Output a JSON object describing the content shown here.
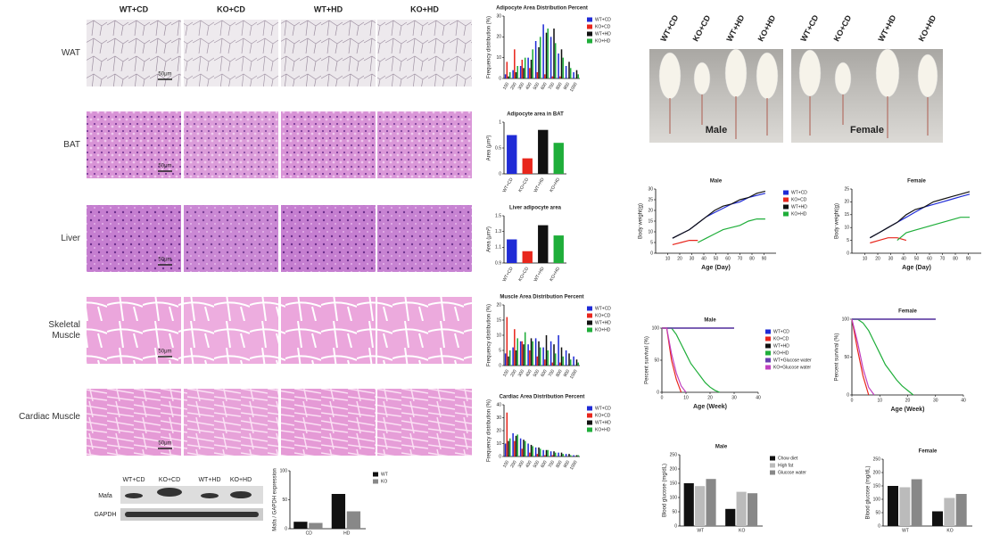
{
  "histology": {
    "columns": [
      "WT+CD",
      "KO+CD",
      "WT+HD",
      "KO+HD"
    ],
    "rows": [
      "WAT",
      "BAT",
      "Liver",
      "Skeletal Muscle",
      "Cardiac Muscle"
    ],
    "scale_bar": "50μm"
  },
  "western_blot": {
    "lanes": [
      "WT+CD",
      "KO+CD",
      "WT+HD",
      "KO+HD"
    ],
    "proteins": [
      "Mafa",
      "GAPDH"
    ]
  },
  "photo": {
    "labels": [
      "WT+CD",
      "KO+CD",
      "WT+HD",
      "KO+HD",
      "WT+CD",
      "KO+CD",
      "WT+HD",
      "KO+HD"
    ],
    "panels": [
      "Male",
      "Female"
    ]
  },
  "charts": [
    {
      "type": "bar",
      "title": "Adipocyte Area Distribution Percent",
      "y_label": "Frequency distribution (%)",
      "categories": [
        "100",
        "200",
        "300",
        "400",
        "500",
        "600",
        "700",
        "800",
        "900",
        "1000"
      ],
      "label_rotation": 60,
      "legend": "right",
      "ylim": [
        0,
        30
      ],
      "yticks": [
        0,
        10,
        20,
        30
      ],
      "series": [
        {
          "name": "WT+CD",
          "color": "#1f2bd6",
          "values": [
            2,
            4,
            6,
            10,
            18,
            26,
            20,
            12,
            6,
            3
          ]
        },
        {
          "name": "KO+CD",
          "color": "#e8261c",
          "values": [
            8,
            14,
            9,
            5,
            3,
            2,
            1,
            1,
            0,
            0
          ]
        },
        {
          "name": "WT+HD",
          "color": "#111111",
          "values": [
            1,
            3,
            5,
            9,
            15,
            22,
            24,
            14,
            8,
            4
          ]
        },
        {
          "name": "KO+HD",
          "color": "#1fae3a",
          "values": [
            3,
            6,
            10,
            14,
            20,
            24,
            17,
            10,
            5,
            2
          ]
        }
      ]
    },
    {
      "type": "bar",
      "title": "Adipocyte area in BAT",
      "y_label": "Area (μm²)",
      "categories": [
        "WT+CD",
        "KO+CD",
        "WT+HD",
        "KO+HD"
      ],
      "label_rotation": 60,
      "ylim": [
        0,
        1
      ],
      "yticks": [
        0,
        0.5,
        1
      ],
      "values": [
        0.75,
        0.3,
        0.85,
        0.6
      ],
      "colors": [
        "#1f2bd6",
        "#e8261c",
        "#111111",
        "#1fae3a"
      ]
    },
    {
      "type": "bar",
      "title": "Liver adipocyte area",
      "y_label": "Area (μm²)",
      "categories": [
        "WT+CD",
        "KO+CD",
        "WT+HD",
        "KO+HD"
      ],
      "label_rotation": 60,
      "ylim": [
        0.9,
        1.5
      ],
      "yticks": [
        0.9,
        1.1,
        1.3,
        1.5
      ],
      "values": [
        1.2,
        1.05,
        1.38,
        1.25
      ],
      "colors": [
        "#1f2bd6",
        "#e8261c",
        "#111111",
        "#1fae3a"
      ]
    },
    {
      "type": "bar",
      "title": "Muscle Area Distribution Percent",
      "y_label": "Frequency distribution (%)",
      "categories": [
        "100",
        "200",
        "300",
        "400",
        "500",
        "600",
        "700",
        "800",
        "900",
        "1000"
      ],
      "label_rotation": 60,
      "legend": "right",
      "ylim": [
        0,
        20
      ],
      "yticks": [
        0,
        5,
        10,
        15,
        20
      ],
      "series": [
        {
          "name": "WT+CD",
          "color": "#1f2bd6",
          "values": [
            4,
            6,
            8,
            7,
            9,
            6,
            8,
            10,
            5,
            3
          ]
        },
        {
          "name": "KO+CD",
          "color": "#e8261c",
          "values": [
            16,
            12,
            8,
            5,
            3,
            2,
            1,
            1,
            0,
            0
          ]
        },
        {
          "name": "WT+HD",
          "color": "#111111",
          "values": [
            3,
            5,
            7,
            9,
            8,
            10,
            7,
            6,
            4,
            2
          ]
        },
        {
          "name": "KO+HD",
          "color": "#1fae3a",
          "values": [
            5,
            9,
            11,
            8,
            6,
            5,
            4,
            3,
            2,
            1
          ]
        }
      ]
    },
    {
      "type": "bar",
      "title": "Cardiac Area Distribution Percent",
      "y_label": "Frequency distribution (%)",
      "categories": [
        "100",
        "200",
        "300",
        "400",
        "500",
        "600",
        "700",
        "800",
        "900",
        "1000"
      ],
      "label_rotation": 60,
      "legend": "right",
      "ylim": [
        0,
        40
      ],
      "yticks": [
        0,
        10,
        20,
        30,
        40
      ],
      "series": [
        {
          "name": "WT+CD",
          "color": "#1f2bd6",
          "values": [
            10,
            18,
            14,
            10,
            7,
            5,
            4,
            3,
            2,
            1
          ]
        },
        {
          "name": "KO+CD",
          "color": "#e8261c",
          "values": [
            34,
            12,
            6,
            3,
            2,
            1,
            1,
            0,
            0,
            0
          ]
        },
        {
          "name": "WT+HD",
          "color": "#111111",
          "values": [
            12,
            16,
            13,
            9,
            7,
            5,
            4,
            3,
            2,
            1
          ]
        },
        {
          "name": "KO+HD",
          "color": "#1fae3a",
          "values": [
            14,
            17,
            12,
            8,
            6,
            5,
            3,
            2,
            1,
            1
          ]
        }
      ]
    },
    {
      "type": "bar",
      "y_label": "Mafa / GAPDH expression",
      "categories": [
        "CD",
        "HD"
      ],
      "legend": "right",
      "ylim": [
        0,
        100
      ],
      "yticks": [
        0,
        50,
        100
      ],
      "series": [
        {
          "name": "WT",
          "color": "#111111",
          "values": [
            12,
            60
          ]
        },
        {
          "name": "KO",
          "color": "#888888",
          "values": [
            10,
            30
          ]
        }
      ]
    },
    {
      "type": "line",
      "title": "Male",
      "x_label": "Age (Day)",
      "y_label": "Body weight(g)",
      "legend": "right",
      "xlim": [
        0,
        100
      ],
      "xticks": [
        10,
        20,
        30,
        40,
        50,
        60,
        70,
        80,
        90
      ],
      "ylim": [
        0,
        30
      ],
      "yticks": [
        0,
        5,
        10,
        15,
        20,
        25,
        30
      ],
      "x": [
        14,
        21,
        28,
        35,
        42,
        49,
        56,
        63,
        70,
        77,
        84,
        91
      ],
      "series": [
        {
          "name": "WT+CD",
          "color": "#1f2bd6",
          "values": [
            7,
            9,
            11,
            14,
            17,
            19,
            21,
            23,
            24,
            26,
            27,
            28
          ]
        },
        {
          "name": "KO+CD",
          "color": "#e8261c",
          "values": [
            4,
            5,
            6,
            6,
            null,
            null,
            null,
            null,
            null,
            null,
            null,
            null
          ]
        },
        {
          "name": "WT+HD",
          "color": "#111111",
          "values": [
            7,
            9,
            11,
            14,
            17,
            20,
            22,
            23,
            25,
            26,
            28,
            29
          ]
        },
        {
          "name": "KO+HD",
          "color": "#1fae3a",
          "values": [
            null,
            null,
            null,
            5,
            7,
            9,
            11,
            12,
            13,
            15,
            16,
            16
          ]
        }
      ]
    },
    {
      "type": "line",
      "title": "Female",
      "x_label": "Age (Day)",
      "y_label": "Body weight(g)",
      "xlim": [
        0,
        100
      ],
      "xticks": [
        10,
        20,
        30,
        40,
        50,
        60,
        70,
        80,
        90
      ],
      "ylim": [
        0,
        25
      ],
      "yticks": [
        0,
        5,
        10,
        15,
        20,
        25
      ],
      "x": [
        14,
        21,
        28,
        35,
        42,
        49,
        56,
        63,
        70,
        77,
        84,
        91
      ],
      "series": [
        {
          "name": "WT+CD",
          "color": "#1f2bd6",
          "values": [
            6,
            8,
            10,
            12,
            14,
            16,
            18,
            19,
            20,
            21,
            22,
            23
          ]
        },
        {
          "name": "KO+CD",
          "color": "#e8261c",
          "values": [
            4,
            5,
            6,
            6,
            5,
            null,
            null,
            null,
            null,
            null,
            null,
            null
          ]
        },
        {
          "name": "WT+HD",
          "color": "#111111",
          "values": [
            6,
            8,
            10,
            12,
            15,
            17,
            18,
            20,
            21,
            22,
            23,
            24
          ]
        },
        {
          "name": "KO+HD",
          "color": "#1fae3a",
          "values": [
            null,
            null,
            null,
            5,
            8,
            9,
            10,
            11,
            12,
            13,
            14,
            14
          ]
        }
      ]
    },
    {
      "type": "line",
      "title": "Male",
      "x_label": "Age (Week)",
      "y_label": "Percent survival (%)",
      "legend": "right",
      "xlim": [
        0,
        40
      ],
      "xticks": [
        0,
        10,
        20,
        30,
        40
      ],
      "ylim": [
        0,
        100
      ],
      "yticks": [
        0,
        50,
        100
      ],
      "x": [
        0,
        2,
        4,
        6,
        8,
        10,
        12,
        14,
        16,
        18,
        20,
        22,
        24,
        26,
        28,
        30
      ],
      "series": [
        {
          "name": "WT+CD",
          "color": "#1f2bd6",
          "values": [
            100,
            100,
            100,
            100,
            100,
            100,
            100,
            100,
            100,
            100,
            100,
            100,
            100,
            100,
            100,
            100
          ]
        },
        {
          "name": "KO+CD",
          "color": "#e8261c",
          "values": [
            100,
            100,
            50,
            20,
            0,
            null,
            null,
            null,
            null,
            null,
            null,
            null,
            null,
            null,
            null,
            null
          ]
        },
        {
          "name": "WT+HD",
          "color": "#111111",
          "values": [
            100,
            100,
            100,
            100,
            100,
            100,
            100,
            100,
            100,
            100,
            100,
            100,
            100,
            100,
            100,
            100
          ]
        },
        {
          "name": "KO+HD",
          "color": "#1fae3a",
          "values": [
            100,
            100,
            100,
            90,
            75,
            60,
            45,
            35,
            25,
            15,
            8,
            3,
            0,
            null,
            null,
            null
          ]
        },
        {
          "name": "WT+Glucose water",
          "color": "#6a3fb0",
          "values": [
            100,
            100,
            100,
            100,
            100,
            100,
            100,
            100,
            100,
            100,
            100,
            100,
            100,
            100,
            100,
            100
          ]
        },
        {
          "name": "KO+Glucose water",
          "color": "#c040c0",
          "values": [
            100,
            100,
            60,
            30,
            10,
            0,
            null,
            null,
            null,
            null,
            null,
            null,
            null,
            null,
            null,
            null
          ]
        }
      ]
    },
    {
      "type": "line",
      "title": "Female",
      "x_label": "Age (Week)",
      "y_label": "Percent survival (%)",
      "xlim": [
        0,
        40
      ],
      "xticks": [
        0,
        10,
        20,
        30,
        40
      ],
      "ylim": [
        0,
        100
      ],
      "yticks": [
        0,
        50,
        100
      ],
      "x": [
        0,
        2,
        4,
        6,
        8,
        10,
        12,
        14,
        16,
        18,
        20,
        22,
        24,
        26,
        28,
        30
      ],
      "series": [
        {
          "name": "WT+CD",
          "color": "#1f2bd6",
          "values": [
            100,
            100,
            100,
            100,
            100,
            100,
            100,
            100,
            100,
            100,
            100,
            100,
            100,
            100,
            100,
            100
          ]
        },
        {
          "name": "KO+CD",
          "color": "#e8261c",
          "values": [
            100,
            60,
            25,
            0,
            null,
            null,
            null,
            null,
            null,
            null,
            null,
            null,
            null,
            null,
            null,
            null
          ]
        },
        {
          "name": "WT+HD",
          "color": "#111111",
          "values": [
            100,
            100,
            100,
            100,
            100,
            100,
            100,
            100,
            100,
            100,
            100,
            100,
            100,
            100,
            100,
            100
          ]
        },
        {
          "name": "KO+HD",
          "color": "#1fae3a",
          "values": [
            100,
            100,
            95,
            85,
            70,
            55,
            40,
            30,
            20,
            12,
            6,
            0,
            null,
            null,
            null,
            null
          ]
        },
        {
          "name": "WT+Glucose water",
          "color": "#6a3fb0",
          "values": [
            100,
            100,
            100,
            100,
            100,
            100,
            100,
            100,
            100,
            100,
            100,
            100,
            100,
            100,
            100,
            100
          ]
        },
        {
          "name": "KO+Glucose water",
          "color": "#c040c0",
          "values": [
            100,
            70,
            35,
            10,
            0,
            null,
            null,
            null,
            null,
            null,
            null,
            null,
            null,
            null,
            null,
            null
          ]
        }
      ]
    },
    {
      "type": "bar",
      "title": "Male",
      "y_label": "Blood glucose (mg/dL)",
      "categories": [
        "WT",
        "KO"
      ],
      "legend": "right",
      "ylim": [
        0,
        250
      ],
      "yticks": [
        0,
        50,
        100,
        150,
        200,
        250
      ],
      "series": [
        {
          "name": "Chow diet",
          "color": "#111111",
          "values": [
            150,
            60
          ]
        },
        {
          "name": "High fat",
          "color": "#bbbbbb",
          "values": [
            140,
            120
          ]
        },
        {
          "name": "Glucose water",
          "color": "#888888",
          "values": [
            165,
            115
          ]
        }
      ]
    },
    {
      "type": "bar",
      "title": "Female",
      "y_label": "Blood glucose (mg/dL)",
      "categories": [
        "WT",
        "KO"
      ],
      "ylim": [
        0,
        250
      ],
      "yticks": [
        0,
        50,
        100,
        150,
        200,
        250
      ],
      "series": [
        {
          "name": "Chow diet",
          "color": "#111111",
          "values": [
            150,
            55
          ]
        },
        {
          "name": "High fat",
          "color": "#bbbbbb",
          "values": [
            145,
            105
          ]
        },
        {
          "name": "Glucose water",
          "color": "#888888",
          "values": [
            175,
            120
          ]
        }
      ]
    }
  ]
}
